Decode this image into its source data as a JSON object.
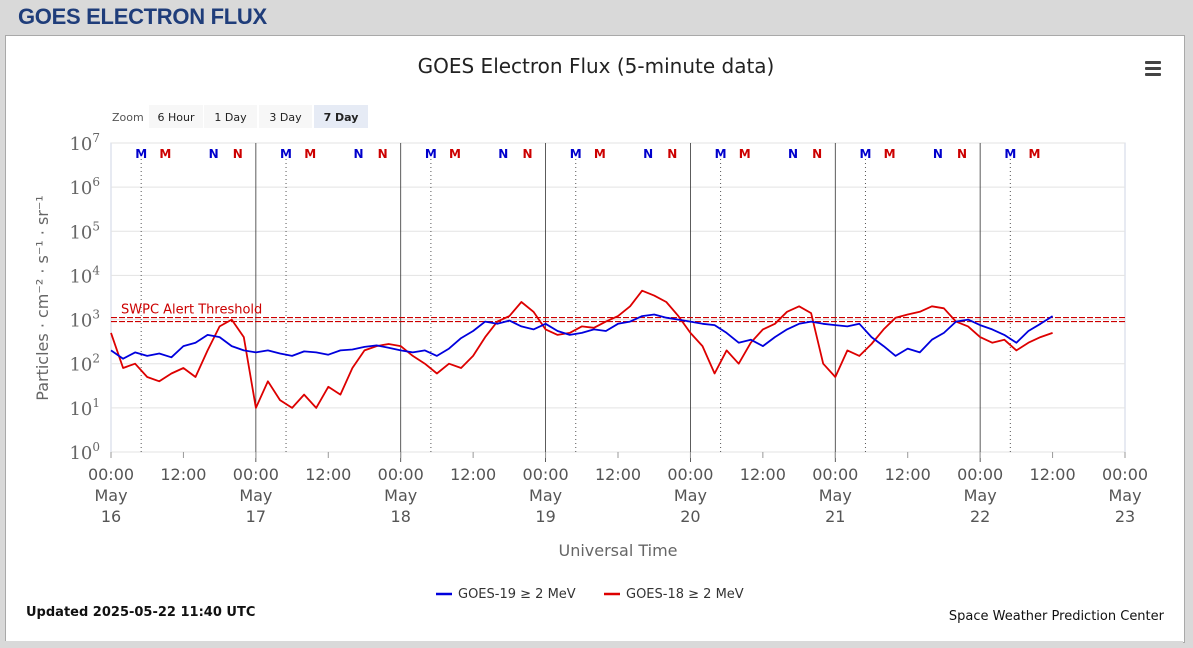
{
  "header": {
    "title": "GOES ELECTRON FLUX"
  },
  "zoom": {
    "label": "Zoom",
    "buttons": [
      "6 Hour",
      "1 Day",
      "3 Day",
      "7 Day"
    ],
    "selected": "7 Day"
  },
  "menu": {
    "icon": "hamburger-menu-icon"
  },
  "footer": {
    "updated": "Updated 2025-05-22 11:40 UTC",
    "source": "Space Weather Prediction Center"
  },
  "chart_data": {
    "type": "line",
    "title": "GOES Electron Flux (5-minute data)",
    "xlabel": "Universal Time",
    "ylabel": "Particles · cm⁻² · s⁻¹ · sr⁻¹",
    "x_unit": "hours since 2025-05-16 00:00 UTC",
    "xlim": [
      0,
      168
    ],
    "ylim": [
      1,
      10000000
    ],
    "y_scale": "log",
    "x_ticks": [
      {
        "time": "00:00",
        "date": [
          "May",
          "16"
        ]
      },
      {
        "time": "12:00",
        "date": []
      },
      {
        "time": "00:00",
        "date": [
          "May",
          "17"
        ]
      },
      {
        "time": "12:00",
        "date": []
      },
      {
        "time": "00:00",
        "date": [
          "May",
          "18"
        ]
      },
      {
        "time": "12:00",
        "date": []
      },
      {
        "time": "00:00",
        "date": [
          "May",
          "19"
        ]
      },
      {
        "time": "12:00",
        "date": []
      },
      {
        "time": "00:00",
        "date": [
          "May",
          "20"
        ]
      },
      {
        "time": "12:00",
        "date": []
      },
      {
        "time": "00:00",
        "date": [
          "May",
          "21"
        ]
      },
      {
        "time": "12:00",
        "date": []
      },
      {
        "time": "00:00",
        "date": [
          "May",
          "22"
        ]
      },
      {
        "time": "12:00",
        "date": []
      },
      {
        "time": "00:00",
        "date": [
          "May",
          "23"
        ]
      }
    ],
    "y_ticks": [
      {
        "value": 1,
        "base": "10",
        "exp": "0"
      },
      {
        "value": 10,
        "base": "10",
        "exp": "1"
      },
      {
        "value": 100,
        "base": "10",
        "exp": "2"
      },
      {
        "value": 1000,
        "base": "10",
        "exp": "3"
      },
      {
        "value": 10000,
        "base": "10",
        "exp": "4"
      },
      {
        "value": 100000,
        "base": "10",
        "exp": "5"
      },
      {
        "value": 1000000,
        "base": "10",
        "exp": "6"
      },
      {
        "value": 10000000,
        "base": "10",
        "exp": "7"
      }
    ],
    "threshold": {
      "label": "SWPC Alert Threshold",
      "value": 1000,
      "color": "#cc0000"
    },
    "markers": [
      {
        "label": "M",
        "hour": 5.0,
        "color": "#0000cc"
      },
      {
        "label": "M",
        "hour": 9.0,
        "color": "#cc0000"
      },
      {
        "label": "N",
        "hour": 17.0,
        "color": "#0000cc"
      },
      {
        "label": "N",
        "hour": 21.0,
        "color": "#cc0000"
      },
      {
        "label": "M",
        "hour": 29.0,
        "color": "#0000cc"
      },
      {
        "label": "M",
        "hour": 33.0,
        "color": "#cc0000"
      },
      {
        "label": "N",
        "hour": 41.0,
        "color": "#0000cc"
      },
      {
        "label": "N",
        "hour": 45.0,
        "color": "#cc0000"
      },
      {
        "label": "M",
        "hour": 53.0,
        "color": "#0000cc"
      },
      {
        "label": "M",
        "hour": 57.0,
        "color": "#cc0000"
      },
      {
        "label": "N",
        "hour": 65.0,
        "color": "#0000cc"
      },
      {
        "label": "N",
        "hour": 69.0,
        "color": "#cc0000"
      },
      {
        "label": "M",
        "hour": 77.0,
        "color": "#0000cc"
      },
      {
        "label": "M",
        "hour": 81.0,
        "color": "#cc0000"
      },
      {
        "label": "N",
        "hour": 89.0,
        "color": "#0000cc"
      },
      {
        "label": "N",
        "hour": 93.0,
        "color": "#cc0000"
      },
      {
        "label": "M",
        "hour": 101.0,
        "color": "#0000cc"
      },
      {
        "label": "M",
        "hour": 105.0,
        "color": "#cc0000"
      },
      {
        "label": "N",
        "hour": 113.0,
        "color": "#0000cc"
      },
      {
        "label": "N",
        "hour": 117.0,
        "color": "#cc0000"
      },
      {
        "label": "M",
        "hour": 125.0,
        "color": "#0000cc"
      },
      {
        "label": "M",
        "hour": 129.0,
        "color": "#cc0000"
      },
      {
        "label": "N",
        "hour": 137.0,
        "color": "#0000cc"
      },
      {
        "label": "N",
        "hour": 141.0,
        "color": "#cc0000"
      },
      {
        "label": "M",
        "hour": 149.0,
        "color": "#0000cc"
      },
      {
        "label": "M",
        "hour": 153.0,
        "color": "#cc0000"
      }
    ],
    "dotted_lines_hours": [
      5,
      29,
      53,
      77,
      101,
      125,
      149
    ],
    "series": [
      {
        "name": "GOES-19 ≥ 2 MeV",
        "color": "#0000dd",
        "x": [
          0,
          2,
          4,
          6,
          8,
          10,
          12,
          14,
          16,
          18,
          20,
          22,
          24,
          26,
          28,
          30,
          32,
          34,
          36,
          38,
          40,
          42,
          44,
          46,
          48,
          50,
          52,
          54,
          56,
          58,
          60,
          62,
          64,
          66,
          68,
          70,
          72,
          74,
          76,
          78,
          80,
          82,
          84,
          86,
          88,
          90,
          92,
          94,
          96,
          98,
          100,
          102,
          104,
          106,
          108,
          110,
          112,
          114,
          116,
          118,
          120,
          122,
          124,
          126,
          128,
          130,
          132,
          134,
          136,
          138,
          140,
          142,
          144,
          146,
          148,
          150,
          152,
          154,
          156
        ],
        "values": [
          200,
          130,
          180,
          150,
          170,
          140,
          250,
          300,
          450,
          400,
          250,
          200,
          180,
          200,
          170,
          150,
          190,
          180,
          160,
          200,
          210,
          240,
          260,
          230,
          200,
          180,
          200,
          150,
          220,
          380,
          550,
          900,
          800,
          950,
          700,
          600,
          800,
          550,
          450,
          500,
          600,
          550,
          800,
          900,
          1200,
          1300,
          1100,
          1000,
          900,
          800,
          750,
          500,
          300,
          350,
          250,
          400,
          600,
          800,
          900,
          800,
          750,
          700,
          800,
          400,
          250,
          150,
          220,
          180,
          350,
          500,
          900,
          1000,
          750,
          600,
          450,
          300,
          550,
          800,
          1200
        ]
      },
      {
        "name": "GOES-18 ≥ 2 MeV",
        "color": "#dd0000",
        "x": [
          0,
          2,
          4,
          6,
          8,
          10,
          12,
          14,
          16,
          18,
          20,
          22,
          24,
          26,
          28,
          30,
          32,
          34,
          36,
          38,
          40,
          42,
          44,
          46,
          48,
          50,
          52,
          54,
          56,
          58,
          60,
          62,
          64,
          66,
          68,
          70,
          72,
          74,
          76,
          78,
          80,
          82,
          84,
          86,
          88,
          90,
          92,
          94,
          96,
          98,
          100,
          102,
          104,
          106,
          108,
          110,
          112,
          114,
          116,
          118,
          120,
          122,
          124,
          126,
          128,
          130,
          132,
          134,
          136,
          138,
          140,
          142,
          144,
          146,
          148,
          150,
          152,
          154,
          156
        ],
        "values": [
          500,
          80,
          100,
          50,
          40,
          60,
          80,
          50,
          200,
          700,
          1000,
          400,
          10,
          40,
          15,
          10,
          20,
          10,
          30,
          20,
          80,
          200,
          250,
          280,
          250,
          150,
          100,
          60,
          100,
          80,
          150,
          400,
          900,
          1200,
          2500,
          1500,
          600,
          450,
          500,
          700,
          650,
          900,
          1200,
          2000,
          4500,
          3500,
          2500,
          1200,
          500,
          250,
          60,
          200,
          100,
          300,
          600,
          800,
          1500,
          2000,
          1400,
          100,
          50,
          200,
          150,
          280,
          600,
          1100,
          1300,
          1500,
          2000,
          1800,
          900,
          700,
          400,
          300,
          350,
          200,
          300,
          400,
          500
        ]
      }
    ],
    "legend_position": "bottom-center"
  }
}
